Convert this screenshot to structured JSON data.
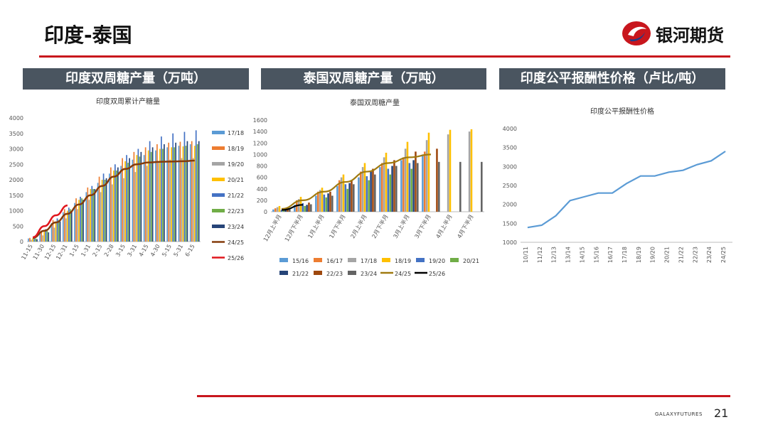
{
  "page": {
    "title": "印度-泰国",
    "logo_text": "银河期货",
    "footer_brand": "GALAXYFUTURES",
    "page_number": "21",
    "accent": "#c8161d",
    "header_bg": "#4a5560"
  },
  "panels": [
    {
      "header": "印度双周糖产量（万吨）"
    },
    {
      "header": "泰国双周糖产量（万吨）"
    },
    {
      "header": "印度公平报酬性价格（卢比/吨）"
    }
  ],
  "chart_data": [
    {
      "type": "bar",
      "title": "印度双周累计产糖量",
      "categories": [
        "11-15",
        "11-30",
        "12-15",
        "12-31",
        "1-15",
        "1-31",
        "2-15",
        "2-28",
        "3-15",
        "3-31",
        "4-15",
        "4-30",
        "5-15",
        "5-31",
        "6-15"
      ],
      "ylim": [
        0,
        4000
      ],
      "yticks": [
        0,
        500,
        1000,
        1500,
        2000,
        2500,
        3000,
        3500,
        4000
      ],
      "legend_position": "right",
      "series": [
        {
          "name": "17/18",
          "kind": "bar",
          "color": "#5b9bd5",
          "values": [
            100,
            300,
            600,
            950,
            1250,
            1600,
            1900,
            2200,
            2450,
            2650,
            2800,
            2950,
            3050,
            3100,
            3150
          ]
        },
        {
          "name": "18/19",
          "kind": "bar",
          "color": "#ed7d31",
          "values": [
            120,
            350,
            700,
            1050,
            1400,
            1750,
            2100,
            2400,
            2700,
            2900,
            3050,
            3150,
            3200,
            3230,
            3250
          ]
        },
        {
          "name": "19/20",
          "kind": "bar",
          "color": "#a5a5a5",
          "values": [
            60,
            200,
            450,
            750,
            1050,
            1350,
            1600,
            1850,
            2050,
            2250,
            2450,
            2600,
            2650,
            2700,
            2700
          ]
        },
        {
          "name": "20/21",
          "kind": "bar",
          "color": "#ffc000",
          "values": [
            100,
            350,
            650,
            1000,
            1350,
            1700,
            2000,
            2300,
            2600,
            2800,
            2950,
            3000,
            3050,
            3080,
            3100
          ]
        },
        {
          "name": "21/22",
          "kind": "bar",
          "color": "#4472c4",
          "values": [
            120,
            400,
            750,
            1100,
            1450,
            1800,
            2200,
            2500,
            2800,
            3000,
            3250,
            3400,
            3500,
            3550,
            3600
          ]
        },
        {
          "name": "22/23",
          "kind": "bar",
          "color": "#70ad47",
          "values": [
            100,
            350,
            700,
            1050,
            1400,
            1700,
            2000,
            2300,
            2550,
            2750,
            2900,
            3000,
            3050,
            3100,
            3150
          ]
        },
        {
          "name": "23/24",
          "kind": "bar",
          "color": "#264478",
          "values": [
            80,
            300,
            650,
            1000,
            1350,
            1700,
            2050,
            2400,
            2700,
            2900,
            3050,
            3150,
            3200,
            3250,
            3250
          ]
        },
        {
          "name": "24/25",
          "kind": "line",
          "color": "#843c0c",
          "values": [
            120,
            350,
            620,
            900,
            1200,
            1500,
            1800,
            2100,
            2350,
            2500,
            2560,
            2580,
            2590,
            2600,
            2620
          ]
        },
        {
          "name": "25/26",
          "kind": "line",
          "color": "#e0161d",
          "values": [
            140,
            500,
            850,
            1170,
            null,
            null,
            null,
            null,
            null,
            null,
            null,
            null,
            null,
            null,
            null
          ]
        }
      ]
    },
    {
      "type": "bar",
      "title": "泰国双周糖产量",
      "categories": [
        "12月上半月",
        "12月下半月",
        "1月上半月",
        "1月下半月",
        "2月上半月",
        "2月下半月",
        "3月上半月",
        "3月下半月",
        "4月上半月",
        "4月下半月"
      ],
      "ylim": [
        0,
        1600
      ],
      "yticks": [
        0,
        200,
        400,
        600,
        800,
        1000,
        1200,
        1400,
        1600
      ],
      "legend_position": "bottom",
      "series": [
        {
          "name": "15/16",
          "kind": "bar",
          "color": "#5b9bd5",
          "values": [
            40,
            120,
            280,
            450,
            600,
            780,
            900,
            1000,
            null,
            null
          ]
        },
        {
          "name": "16/17",
          "kind": "bar",
          "color": "#ed7d31",
          "values": [
            60,
            200,
            350,
            550,
            700,
            850,
            950,
            1050,
            null,
            null
          ]
        },
        {
          "name": "17/18",
          "kind": "bar",
          "color": "#a5a5a5",
          "values": [
            80,
            220,
            380,
            600,
            780,
            950,
            1100,
            1250,
            1350,
            1400
          ]
        },
        {
          "name": "18/19",
          "kind": "bar",
          "color": "#ffc000",
          "values": [
            100,
            260,
            420,
            650,
            850,
            1030,
            1220,
            1380,
            1430,
            1440
          ]
        },
        {
          "name": "19/20",
          "kind": "bar",
          "color": "#4472c4",
          "values": [
            30,
            150,
            300,
            480,
            620,
            750,
            850,
            null,
            null,
            null
          ]
        },
        {
          "name": "20/21",
          "kind": "bar",
          "color": "#70ad47",
          "values": [
            20,
            100,
            250,
            400,
            550,
            650,
            750,
            null,
            null,
            null
          ]
        },
        {
          "name": "21/22",
          "kind": "bar",
          "color": "#264478",
          "values": [
            30,
            120,
            320,
            500,
            700,
            800,
            900,
            null,
            null,
            null
          ]
        },
        {
          "name": "22/23",
          "kind": "bar",
          "color": "#9e480e",
          "values": [
            50,
            160,
            350,
            550,
            750,
            900,
            1050,
            1100,
            null,
            null
          ]
        },
        {
          "name": "23/24",
          "kind": "bar",
          "color": "#636363",
          "values": [
            40,
            130,
            280,
            480,
            650,
            800,
            850,
            870,
            870,
            870
          ]
        },
        {
          "name": "24/25",
          "kind": "line",
          "color": "#a07a10",
          "values": [
            50,
            200,
            350,
            520,
            700,
            850,
            950,
            1000,
            null,
            null
          ]
        },
        {
          "name": "25/26",
          "kind": "line",
          "color": "#000000",
          "values": [
            30,
            120,
            null,
            null,
            null,
            null,
            null,
            null,
            null,
            null
          ]
        }
      ]
    },
    {
      "type": "line",
      "title": "印度公平报酬性价格",
      "categories": [
        "10/11",
        "11/12",
        "12/13",
        "13/14",
        "14/15",
        "15/16",
        "16/17",
        "17/18",
        "18/19",
        "19/20",
        "20/21",
        "21/22",
        "22/23",
        "23/24",
        "24/25"
      ],
      "ylim": [
        1000,
        4000
      ],
      "yticks": [
        1000,
        1500,
        2000,
        2500,
        3000,
        3500,
        4000
      ],
      "series": [
        {
          "name": "",
          "color": "#5b9bd5",
          "values": [
            1390,
            1450,
            1700,
            2100,
            2200,
            2300,
            2300,
            2550,
            2750,
            2750,
            2850,
            2900,
            3050,
            3150,
            3400
          ]
        }
      ]
    }
  ]
}
